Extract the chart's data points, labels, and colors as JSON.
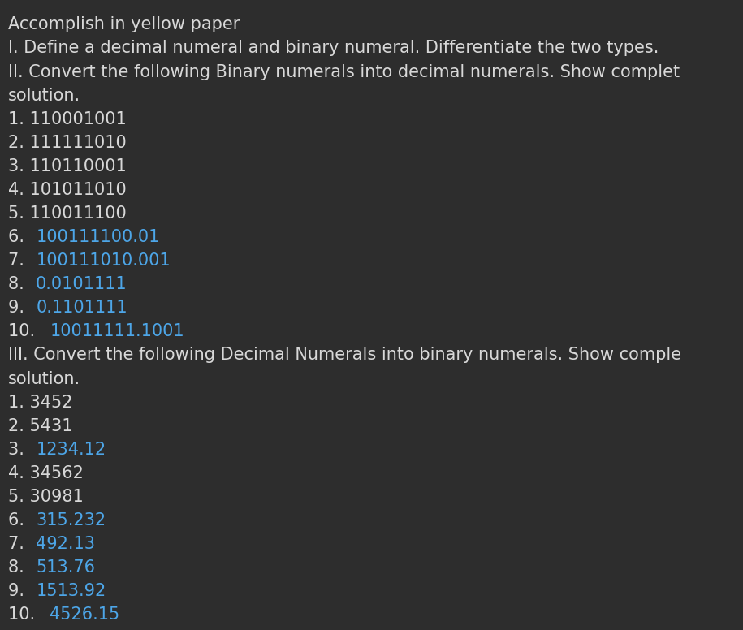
{
  "background_color": "#2d2d2d",
  "text_color_white": "#d8d8d8",
  "text_color_blue": "#4da6e8",
  "font_size": 15.0,
  "font_family": "DejaVu Sans",
  "lines": [
    {
      "text": "Accomplish in yellow paper",
      "color": "#d8d8d8"
    },
    {
      "text": "I. Define a decimal numeral and binary numeral. Differentiate the two types.",
      "color": "#d8d8d8"
    },
    {
      "text": "II. Convert the following Binary numerals into decimal numerals. Show complet",
      "color": "#d8d8d8"
    },
    {
      "text": "solution.",
      "color": "#d8d8d8"
    },
    {
      "text": "1. 110001001",
      "color": "#d8d8d8"
    },
    {
      "text": "2. 111111010",
      "color": "#d8d8d8"
    },
    {
      "text": "3. 110110001",
      "color": "#d8d8d8"
    },
    {
      "text": "4. 101011010",
      "color": "#d8d8d8"
    },
    {
      "text": "5. 110011100",
      "color": "#d8d8d8"
    },
    {
      "text": "6. ",
      "color": "#d8d8d8",
      "continuation": "100111100.01",
      "cont_color": "#4da6e8"
    },
    {
      "text": "7. ",
      "color": "#d8d8d8",
      "continuation": "100111010.001",
      "cont_color": "#4da6e8"
    },
    {
      "text": "8. ",
      "color": "#d8d8d8",
      "continuation": "0.0101111",
      "cont_color": "#4da6e8"
    },
    {
      "text": "9. ",
      "color": "#d8d8d8",
      "continuation": "0.1101111",
      "cont_color": "#4da6e8"
    },
    {
      "text": "10. ",
      "color": "#d8d8d8",
      "continuation": "10011111.1001",
      "cont_color": "#4da6e8"
    },
    {
      "text": "III. Convert the following Decimal Numerals into binary numerals. Show comple",
      "color": "#d8d8d8"
    },
    {
      "text": "solution.",
      "color": "#d8d8d8"
    },
    {
      "text": "1. 3452",
      "color": "#d8d8d8"
    },
    {
      "text": "2. 5431",
      "color": "#d8d8d8"
    },
    {
      "text": "3. ",
      "color": "#d8d8d8",
      "continuation": "1234.12",
      "cont_color": "#4da6e8"
    },
    {
      "text": "4. 34562",
      "color": "#d8d8d8"
    },
    {
      "text": "5. 30981",
      "color": "#d8d8d8"
    },
    {
      "text": "6. ",
      "color": "#d8d8d8",
      "continuation": "315.232",
      "cont_color": "#4da6e8"
    },
    {
      "text": "7. ",
      "color": "#d8d8d8",
      "continuation": "492.13",
      "cont_color": "#4da6e8"
    },
    {
      "text": "8. ",
      "color": "#d8d8d8",
      "continuation": "513.76",
      "cont_color": "#4da6e8"
    },
    {
      "text": "9. ",
      "color": "#d8d8d8",
      "continuation": "1513.92",
      "cont_color": "#4da6e8"
    },
    {
      "text": "10. ",
      "color": "#d8d8d8",
      "continuation": "4526.15",
      "cont_color": "#4da6e8"
    }
  ]
}
